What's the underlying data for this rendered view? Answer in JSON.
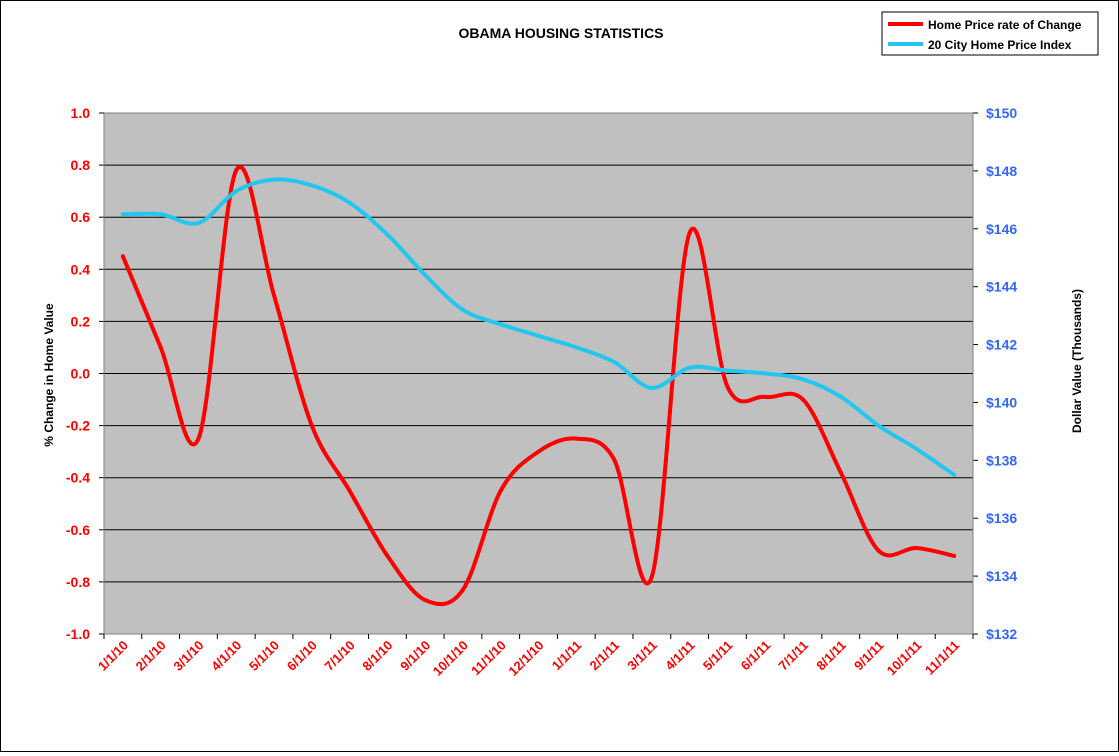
{
  "chart_data": {
    "type": "line",
    "title": "OBAMA HOUSING STATISTICS",
    "ylabel": "% Change in Home Value",
    "y2label": "Dollar Value (Thousands)",
    "xlabel": "",
    "categories": [
      "1/1/10",
      "2/1/10",
      "3/1/10",
      "4/1/10",
      "5/1/10",
      "6/1/10",
      "7/1/10",
      "8/1/10",
      "9/1/10",
      "10/1/10",
      "11/1/10",
      "12/1/10",
      "1/1/11",
      "2/1/11",
      "3/1/11",
      "4/1/11",
      "5/1/11",
      "6/1/11",
      "7/1/11",
      "8/1/11",
      "9/1/11",
      "10/1/11",
      "11/1/11"
    ],
    "ylim": [
      -1.0,
      1.0
    ],
    "yticks": [
      "1.0",
      "0.8",
      "0.6",
      "0.4",
      "0.2",
      "0.0",
      "-0.2",
      "-0.4",
      "-0.6",
      "-0.8",
      "-1.0"
    ],
    "y2lim": [
      132,
      150
    ],
    "y2ticks": [
      "$150",
      "$148",
      "$146",
      "$144",
      "$142",
      "$140",
      "$138",
      "$136",
      "$134",
      "$132"
    ],
    "grid": true,
    "legend_position": "top-right",
    "series": [
      {
        "name": "Home Price rate of Change",
        "axis": "left",
        "color": "#ff0000",
        "values": [
          0.45,
          0.1,
          -0.25,
          0.78,
          0.3,
          -0.2,
          -0.45,
          -0.7,
          -0.87,
          -0.83,
          -0.45,
          -0.3,
          -0.25,
          -0.33,
          -0.78,
          0.54,
          -0.05,
          -0.09,
          -0.1,
          -0.38,
          -0.68,
          -0.67,
          -0.7
        ]
      },
      {
        "name": "20 City Home Price Index",
        "axis": "right",
        "color": "#22c7f0",
        "values": [
          146.5,
          146.5,
          146.2,
          147.3,
          147.7,
          147.5,
          146.9,
          145.8,
          144.4,
          143.2,
          142.7,
          142.3,
          141.9,
          141.4,
          140.5,
          141.2,
          141.1,
          141.0,
          140.8,
          140.2,
          139.2,
          138.4,
          137.5
        ]
      }
    ]
  }
}
